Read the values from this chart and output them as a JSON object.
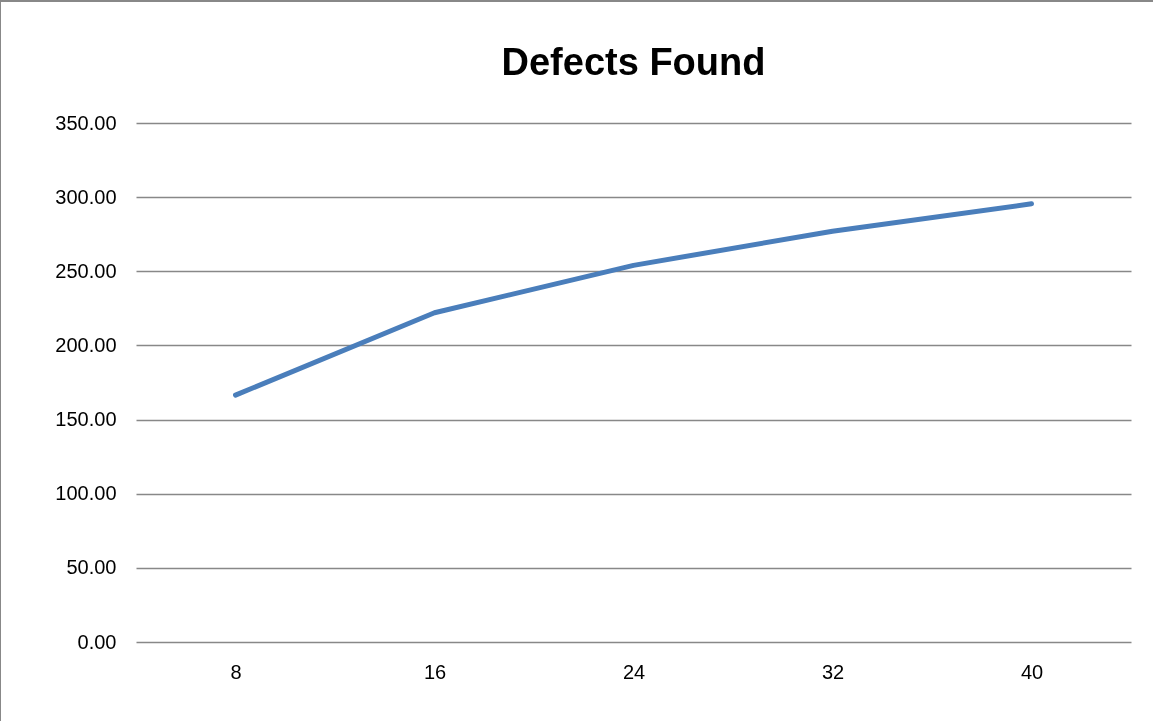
{
  "chart_data": {
    "type": "line",
    "title": "Defects Found",
    "categories": [
      "8",
      "16",
      "24",
      "32",
      "40"
    ],
    "series": [
      {
        "color": "#4a7ebb",
        "values": [
          166.5,
          222,
          254,
          277,
          295.5
        ]
      }
    ],
    "ylim": [
      0,
      350
    ],
    "yticks": [
      {
        "value": 0,
        "label": "0.00"
      },
      {
        "value": 50,
        "label": "50.00"
      },
      {
        "value": 100,
        "label": "100.00"
      },
      {
        "value": 150,
        "label": "150.00"
      },
      {
        "value": 200,
        "label": "200.00"
      },
      {
        "value": 250,
        "label": "250.00"
      },
      {
        "value": 300,
        "label": "300.00"
      },
      {
        "value": 350,
        "label": "350.00"
      }
    ],
    "grid": "y",
    "marker": "none",
    "line_style": "solid"
  }
}
